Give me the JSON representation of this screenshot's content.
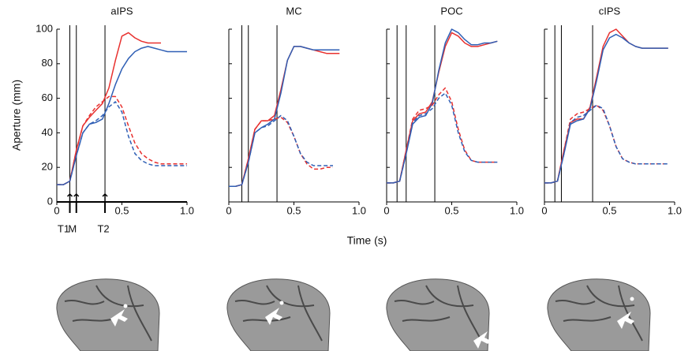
{
  "figure": {
    "xlabel": "Time (s)"
  },
  "chart_data": [
    {
      "type": "line",
      "title": "aIPS",
      "ylabel": "Aperture (mm)",
      "xlim": [
        0,
        1
      ],
      "xticks": [
        0,
        0.5,
        {
          "value": 1,
          "label": "1.0"
        }
      ],
      "ylim": [
        0,
        100
      ],
      "yticks": [
        0,
        20,
        40,
        60,
        80,
        100
      ],
      "show_ytick_labels": true,
      "vlines": [
        {
          "value": 0.1,
          "label": "T1"
        },
        {
          "value": 0.15,
          "label": "M"
        },
        {
          "value": 0.37,
          "label": "T2"
        }
      ],
      "x": [
        0,
        0.05,
        0.1,
        0.15,
        0.2,
        0.25,
        0.3,
        0.35,
        0.4,
        0.45,
        0.5,
        0.55,
        0.6,
        0.65,
        0.7,
        0.75,
        0.8,
        0.85,
        0.9,
        0.95,
        1
      ],
      "series": [
        {
          "color": "#e8312f",
          "dashed": false,
          "values": [
            10,
            10,
            12,
            30,
            44,
            49,
            53,
            57,
            66,
            82,
            96,
            98,
            95,
            93,
            92,
            92,
            92,
            null,
            null,
            null,
            null
          ]
        },
        {
          "color": "#2f5fb5",
          "dashed": false,
          "values": [
            10,
            10,
            12,
            27,
            40,
            45,
            46,
            48,
            57,
            68,
            77,
            83,
            87,
            89,
            90,
            89,
            88,
            87,
            87,
            87,
            87
          ]
        },
        {
          "color": "#e8312f",
          "dashed": true,
          "values": [
            10,
            10,
            12,
            30,
            44,
            50,
            55,
            58,
            61,
            61,
            55,
            44,
            34,
            28,
            25,
            23,
            22,
            22,
            22,
            22,
            22
          ]
        },
        {
          "color": "#2f5fb5",
          "dashed": true,
          "values": [
            10,
            10,
            12,
            27,
            40,
            45,
            47,
            50,
            55,
            58,
            52,
            38,
            28,
            24,
            22,
            21,
            21,
            21,
            21,
            21,
            21
          ]
        }
      ]
    },
    {
      "type": "line",
      "title": "MC",
      "xlim": [
        0,
        1
      ],
      "xticks": [
        0,
        0.5,
        {
          "value": 1,
          "label": "1.0"
        }
      ],
      "ylim": [
        0,
        100
      ],
      "yticks": [
        0,
        20,
        40,
        60,
        80,
        100
      ],
      "show_ytick_labels": false,
      "vlines": [
        0.1,
        0.15,
        0.37
      ],
      "x": [
        0,
        0.05,
        0.1,
        0.15,
        0.2,
        0.25,
        0.3,
        0.35,
        0.4,
        0.45,
        0.5,
        0.55,
        0.6,
        0.65,
        0.7,
        0.75,
        0.8,
        0.85,
        0.9,
        0.95,
        1
      ],
      "series": [
        {
          "color": "#e8312f",
          "dashed": false,
          "values": [
            9,
            9,
            10,
            25,
            42,
            47,
            47,
            50,
            65,
            82,
            90,
            90,
            89,
            88,
            87,
            86,
            86,
            86,
            null,
            null,
            null
          ]
        },
        {
          "color": "#2f5fb5",
          "dashed": false,
          "values": [
            9,
            9,
            10,
            23,
            40,
            43,
            45,
            48,
            63,
            82,
            90,
            90,
            89,
            88,
            88,
            88,
            88,
            88,
            null,
            null,
            null
          ]
        },
        {
          "color": "#e8312f",
          "dashed": true,
          "values": [
            9,
            9,
            10,
            25,
            42,
            47,
            47,
            48,
            49,
            46,
            38,
            28,
            22,
            19,
            19,
            20,
            20,
            null,
            null,
            null,
            null
          ]
        },
        {
          "color": "#2f5fb5",
          "dashed": true,
          "values": [
            9,
            9,
            10,
            23,
            40,
            43,
            44,
            47,
            50,
            47,
            38,
            28,
            23,
            21,
            21,
            21,
            21,
            null,
            null,
            null,
            null
          ]
        }
      ]
    },
    {
      "type": "line",
      "title": "POC",
      "xlim": [
        0,
        1
      ],
      "xticks": [
        0,
        0.5,
        {
          "value": 1,
          "label": "1.0"
        }
      ],
      "ylim": [
        0,
        100
      ],
      "yticks": [
        0,
        20,
        40,
        60,
        80,
        100
      ],
      "show_ytick_labels": false,
      "vlines": [
        0.08,
        0.15,
        0.37
      ],
      "x": [
        0,
        0.05,
        0.1,
        0.15,
        0.2,
        0.25,
        0.3,
        0.35,
        0.4,
        0.45,
        0.5,
        0.55,
        0.6,
        0.65,
        0.7,
        0.75,
        0.8,
        0.85,
        0.9,
        0.95,
        1
      ],
      "series": [
        {
          "color": "#e8312f",
          "dashed": false,
          "values": [
            11,
            11,
            12,
            30,
            47,
            51,
            52,
            58,
            75,
            90,
            98,
            96,
            92,
            90,
            90,
            91,
            92,
            93,
            null,
            null,
            null
          ]
        },
        {
          "color": "#2f5fb5",
          "dashed": false,
          "values": [
            11,
            11,
            12,
            28,
            45,
            49,
            50,
            57,
            76,
            92,
            100,
            98,
            94,
            91,
            91,
            92,
            92,
            93,
            null,
            null,
            null
          ]
        },
        {
          "color": "#e8312f",
          "dashed": true,
          "values": [
            11,
            11,
            12,
            30,
            48,
            53,
            54,
            56,
            62,
            66,
            58,
            42,
            30,
            24,
            23,
            23,
            23,
            23,
            null,
            null,
            null
          ]
        },
        {
          "color": "#2f5fb5",
          "dashed": true,
          "values": [
            11,
            11,
            12,
            28,
            46,
            50,
            51,
            54,
            60,
            63,
            56,
            40,
            29,
            24,
            23,
            23,
            23,
            23,
            null,
            null,
            null
          ]
        }
      ]
    },
    {
      "type": "line",
      "title": "cIPS",
      "xlim": [
        0,
        1
      ],
      "xticks": [
        0,
        0.5,
        {
          "value": 1,
          "label": "1.0"
        }
      ],
      "ylim": [
        0,
        100
      ],
      "yticks": [
        0,
        20,
        40,
        60,
        80,
        100
      ],
      "show_ytick_labels": false,
      "vlines": [
        0.08,
        0.13,
        0.37
      ],
      "x": [
        0,
        0.05,
        0.1,
        0.15,
        0.2,
        0.25,
        0.3,
        0.35,
        0.4,
        0.45,
        0.5,
        0.55,
        0.6,
        0.65,
        0.7,
        0.75,
        0.8,
        0.85,
        0.9,
        0.95,
        1
      ],
      "series": [
        {
          "color": "#e8312f",
          "dashed": false,
          "values": [
            11,
            11,
            12,
            30,
            46,
            48,
            48,
            55,
            72,
            90,
            98,
            100,
            96,
            92,
            90,
            89,
            89,
            89,
            89,
            89,
            null
          ]
        },
        {
          "color": "#2f5fb5",
          "dashed": false,
          "values": [
            11,
            11,
            12,
            28,
            45,
            47,
            48,
            54,
            70,
            88,
            95,
            97,
            95,
            92,
            90,
            89,
            89,
            89,
            89,
            89,
            null
          ]
        },
        {
          "color": "#e8312f",
          "dashed": true,
          "values": [
            11,
            11,
            12,
            30,
            48,
            51,
            52,
            54,
            56,
            53,
            44,
            32,
            25,
            23,
            22,
            22,
            22,
            22,
            22,
            22,
            null
          ]
        },
        {
          "color": "#2f5fb5",
          "dashed": true,
          "values": [
            11,
            11,
            12,
            28,
            46,
            49,
            50,
            53,
            56,
            54,
            44,
            32,
            25,
            23,
            22,
            22,
            22,
            22,
            22,
            22,
            null
          ]
        }
      ]
    }
  ]
}
